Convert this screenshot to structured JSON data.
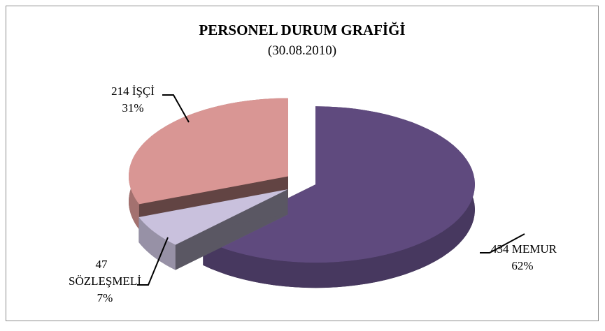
{
  "chart_data": {
    "type": "pie3d",
    "title": "PERSONEL DURUM GRAFİĞİ",
    "subtitle": "(30.08.2010)",
    "categories": [
      "MEMUR",
      "SÖZLEŞMELİ",
      "İŞÇİ"
    ],
    "values": [
      434,
      47,
      214
    ],
    "percent_labels": [
      "62%",
      "7%",
      "31%"
    ],
    "colors": [
      "#5f4a7e",
      "#c9c1dd",
      "#d99694"
    ]
  }
}
